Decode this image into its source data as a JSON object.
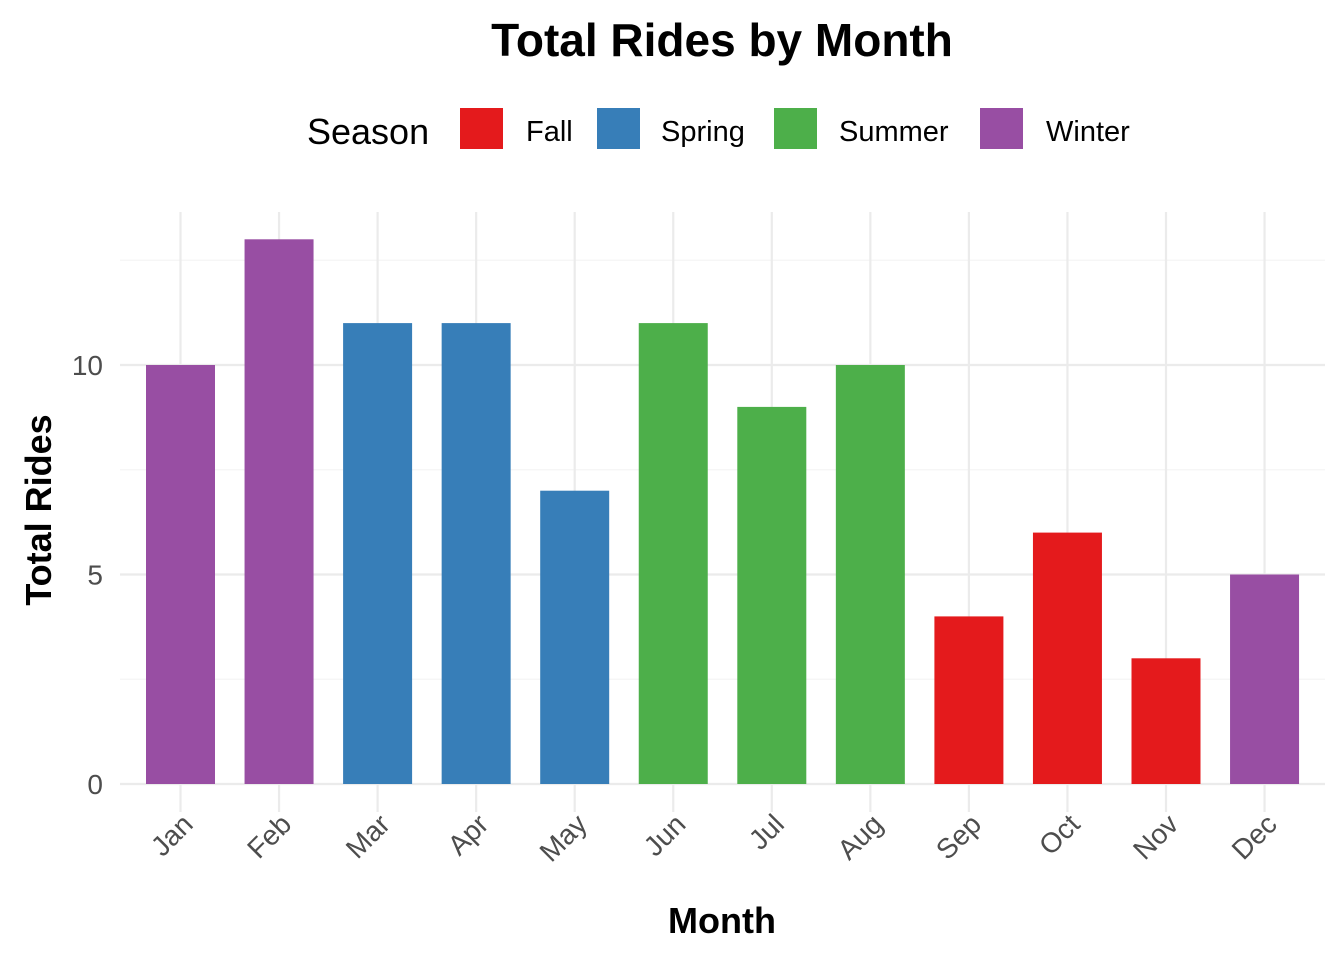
{
  "chart_data": {
    "type": "bar",
    "title": "Total Rides by Month",
    "xlabel": "Month",
    "ylabel": "Total Rides",
    "categories": [
      "Jan",
      "Feb",
      "Mar",
      "Apr",
      "May",
      "Jun",
      "Jul",
      "Aug",
      "Sep",
      "Oct",
      "Nov",
      "Dec"
    ],
    "values": [
      10,
      13,
      11,
      11,
      7,
      11,
      9,
      10,
      4,
      6,
      3,
      5
    ],
    "season": [
      "Winter",
      "Winter",
      "Spring",
      "Spring",
      "Spring",
      "Summer",
      "Summer",
      "Summer",
      "Fall",
      "Fall",
      "Fall",
      "Winter"
    ],
    "ylim": [
      0,
      13
    ],
    "yticks": [
      0,
      5,
      10
    ],
    "grid": true,
    "legend": {
      "title": "Season",
      "position": "top",
      "entries": [
        {
          "name": "Fall",
          "color": "#E41A1C"
        },
        {
          "name": "Spring",
          "color": "#377EB8"
        },
        {
          "name": "Summer",
          "color": "#4DAF4A"
        },
        {
          "name": "Winter",
          "color": "#984EA3"
        }
      ]
    }
  }
}
